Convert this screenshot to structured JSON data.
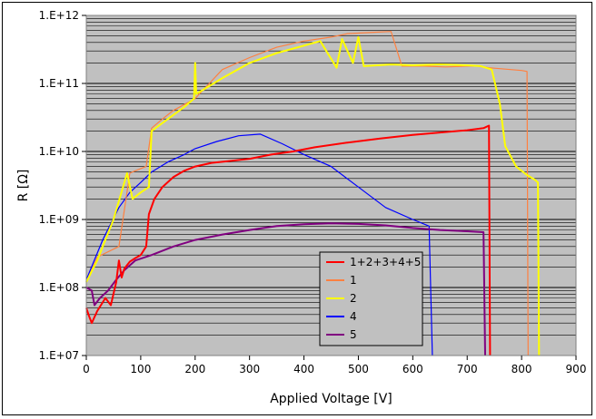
{
  "chart_data": {
    "type": "line",
    "title": "",
    "xlabel": "Applied Voltage [V]",
    "ylabel": "R [Ω]",
    "xlim": [
      0,
      900
    ],
    "ylim": [
      10000000,
      1000000000000
    ],
    "yscale": "log",
    "grid": true,
    "legend_position": "lower-center",
    "plot_background": "#c0c0c0",
    "x_ticks": [
      "0",
      "100",
      "200",
      "300",
      "400",
      "500",
      "600",
      "700",
      "800",
      "900"
    ],
    "y_ticks": [
      "1.E+07",
      "1.E+08",
      "1.E+09",
      "1.E+10",
      "1.E+11",
      "1.E+12"
    ],
    "series": [
      {
        "name": "1+2+3+4+5",
        "color": "#ff0000",
        "points": [
          [
            0,
            50000000.0
          ],
          [
            5,
            38000000.0
          ],
          [
            10,
            30000000.0
          ],
          [
            20,
            45000000.0
          ],
          [
            35,
            70000000.0
          ],
          [
            45,
            55000000.0
          ],
          [
            55,
            120000000.0
          ],
          [
            60,
            250000000.0
          ],
          [
            65,
            140000000.0
          ],
          [
            70,
            190000000.0
          ],
          [
            80,
            240000000.0
          ],
          [
            90,
            270000000.0
          ],
          [
            100,
            300000000.0
          ],
          [
            110,
            400000000.0
          ],
          [
            115,
            1200000000.0
          ],
          [
            125,
            2000000000.0
          ],
          [
            140,
            3000000000.0
          ],
          [
            160,
            4200000000.0
          ],
          [
            180,
            5200000000.0
          ],
          [
            200,
            6000000000.0
          ],
          [
            230,
            6800000000.0
          ],
          [
            260,
            7200000000.0
          ],
          [
            300,
            7800000000.0
          ],
          [
            340,
            9000000000.0
          ],
          [
            380,
            10000000000.0
          ],
          [
            420,
            11500000000.0
          ],
          [
            480,
            13500000000.0
          ],
          [
            540,
            15500000000.0
          ],
          [
            600,
            17500000000.0
          ],
          [
            650,
            19000000000.0
          ],
          [
            700,
            20500000000.0
          ],
          [
            730,
            22000000000.0
          ],
          [
            740,
            24000000000.0
          ],
          [
            742,
            10000000.0
          ]
        ]
      },
      {
        "name": "1",
        "color": "#ff8040",
        "points": [
          [
            0,
            120000000.0
          ],
          [
            20,
            280000000.0
          ],
          [
            60,
            400000000.0
          ],
          [
            80,
            4800000000.0
          ],
          [
            90,
            5200000000.0
          ],
          [
            110,
            6000000000.0
          ],
          [
            120,
            22000000000.0
          ],
          [
            140,
            30000000000.0
          ],
          [
            160,
            40000000000.0
          ],
          [
            200,
            60000000000.0
          ],
          [
            250,
            160000000000.0
          ],
          [
            300,
            240000000000.0
          ],
          [
            350,
            340000000000.0
          ],
          [
            400,
            420000000000.0
          ],
          [
            450,
            480000000000.0
          ],
          [
            480,
            540000000000.0
          ],
          [
            520,
            560000000000.0
          ],
          [
            560,
            580000000000.0
          ],
          [
            580,
            180000000000.0
          ],
          [
            620,
            180000000000.0
          ],
          [
            660,
            175000000000.0
          ],
          [
            700,
            180000000000.0
          ],
          [
            720,
            180000000000.0
          ],
          [
            740,
            170000000000.0
          ],
          [
            760,
            165000000000.0
          ],
          [
            780,
            160000000000.0
          ],
          [
            800,
            155000000000.0
          ],
          [
            810,
            150000000000.0
          ],
          [
            812,
            10000000.0
          ]
        ]
      },
      {
        "name": "2",
        "color": "#ffff00",
        "points": [
          [
            0,
            120000000.0
          ],
          [
            20,
            250000000.0
          ],
          [
            50,
            1000000000.0
          ],
          [
            75,
            4800000000.0
          ],
          [
            85,
            2000000000.0
          ],
          [
            100,
            2500000000.0
          ],
          [
            115,
            3000000000.0
          ],
          [
            120,
            20000000000.0
          ],
          [
            150,
            30000000000.0
          ],
          [
            180,
            45000000000.0
          ],
          [
            198,
            60000000000.0
          ],
          [
            200,
            200000000000.0
          ],
          [
            202,
            70000000000.0
          ],
          [
            250,
            120000000000.0
          ],
          [
            300,
            200000000000.0
          ],
          [
            350,
            280000000000.0
          ],
          [
            400,
            360000000000.0
          ],
          [
            430,
            420000000000.0
          ],
          [
            460,
            170000000000.0
          ],
          [
            470,
            450000000000.0
          ],
          [
            490,
            200000000000.0
          ],
          [
            500,
            480000000000.0
          ],
          [
            510,
            180000000000.0
          ],
          [
            560,
            190000000000.0
          ],
          [
            600,
            185000000000.0
          ],
          [
            650,
            190000000000.0
          ],
          [
            700,
            185000000000.0
          ],
          [
            725,
            180000000000.0
          ],
          [
            745,
            160000000000.0
          ],
          [
            760,
            50000000000.0
          ],
          [
            770,
            12000000000.0
          ],
          [
            790,
            6000000000.0
          ],
          [
            810,
            4500000000.0
          ],
          [
            825,
            3800000000.0
          ],
          [
            830,
            3500000000.0
          ],
          [
            832,
            10000000.0
          ]
        ]
      },
      {
        "name": "4",
        "color": "#0000ff",
        "points": [
          [
            0,
            130000000.0
          ],
          [
            30,
            500000000.0
          ],
          [
            60,
            1500000000.0
          ],
          [
            80,
            2500000000.0
          ],
          [
            100,
            3500000000.0
          ],
          [
            120,
            5000000000.0
          ],
          [
            150,
            7000000000.0
          ],
          [
            180,
            9000000000.0
          ],
          [
            200,
            11000000000.0
          ],
          [
            240,
            14000000000.0
          ],
          [
            280,
            17000000000.0
          ],
          [
            320,
            18000000000.0
          ],
          [
            360,
            13000000000.0
          ],
          [
            400,
            9000000000.0
          ],
          [
            450,
            6000000000.0
          ],
          [
            500,
            3000000000.0
          ],
          [
            550,
            1500000000.0
          ],
          [
            600,
            1000000000.0
          ],
          [
            630,
            800000000.0
          ],
          [
            636,
            10000000.0
          ]
        ]
      },
      {
        "name": "5",
        "color": "#800080",
        "points": [
          [
            0,
            100000000.0
          ],
          [
            10,
            90000000.0
          ],
          [
            15,
            55000000.0
          ],
          [
            25,
            70000000.0
          ],
          [
            40,
            90000000.0
          ],
          [
            55,
            130000000.0
          ],
          [
            70,
            180000000.0
          ],
          [
            90,
            250000000.0
          ],
          [
            120,
            300000000.0
          ],
          [
            160,
            400000000.0
          ],
          [
            200,
            500000000.0
          ],
          [
            250,
            600000000.0
          ],
          [
            300,
            700000000.0
          ],
          [
            350,
            800000000.0
          ],
          [
            400,
            850000000.0
          ],
          [
            450,
            880000000.0
          ],
          [
            500,
            860000000.0
          ],
          [
            550,
            820000000.0
          ],
          [
            600,
            750000000.0
          ],
          [
            650,
            700000000.0
          ],
          [
            700,
            670000000.0
          ],
          [
            730,
            650000000.0
          ],
          [
            733,
            10000000.0
          ]
        ]
      }
    ]
  }
}
